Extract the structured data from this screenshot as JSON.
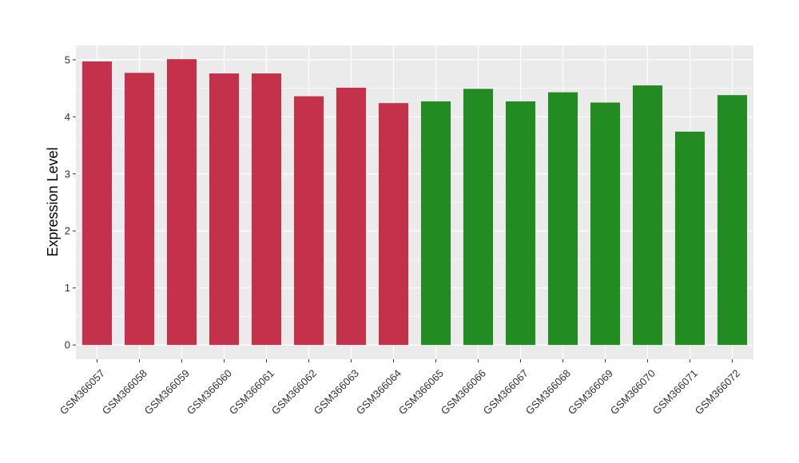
{
  "chart_data": {
    "type": "bar",
    "title": "",
    "xlabel": "",
    "ylabel": "Expression Level",
    "ylim": [
      -0.25,
      5.25
    ],
    "yticks": [
      0,
      1,
      2,
      3,
      4,
      5
    ],
    "grid": true,
    "legend": "none",
    "categories": [
      "GSM366057",
      "GSM366058",
      "GSM366059",
      "GSM366060",
      "GSM366061",
      "GSM366062",
      "GSM366063",
      "GSM366064",
      "GSM366065",
      "GSM366066",
      "GSM366067",
      "GSM366068",
      "GSM366069",
      "GSM366070",
      "GSM366071",
      "GSM366072"
    ],
    "values": [
      4.97,
      4.77,
      5.01,
      4.76,
      4.76,
      4.36,
      4.51,
      4.24,
      4.27,
      4.49,
      4.27,
      4.43,
      4.25,
      4.55,
      3.74,
      4.38
    ],
    "bar_colors": [
      "#c3314a",
      "#c3314a",
      "#c3314a",
      "#c3314a",
      "#c3314a",
      "#c3314a",
      "#c3314a",
      "#c3314a",
      "#228b22",
      "#228b22",
      "#228b22",
      "#228b22",
      "#228b22",
      "#228b22",
      "#228b22",
      "#228b22"
    ]
  },
  "colors": {
    "panel_background": "#ebebeb",
    "gridline": "#ffffff"
  }
}
